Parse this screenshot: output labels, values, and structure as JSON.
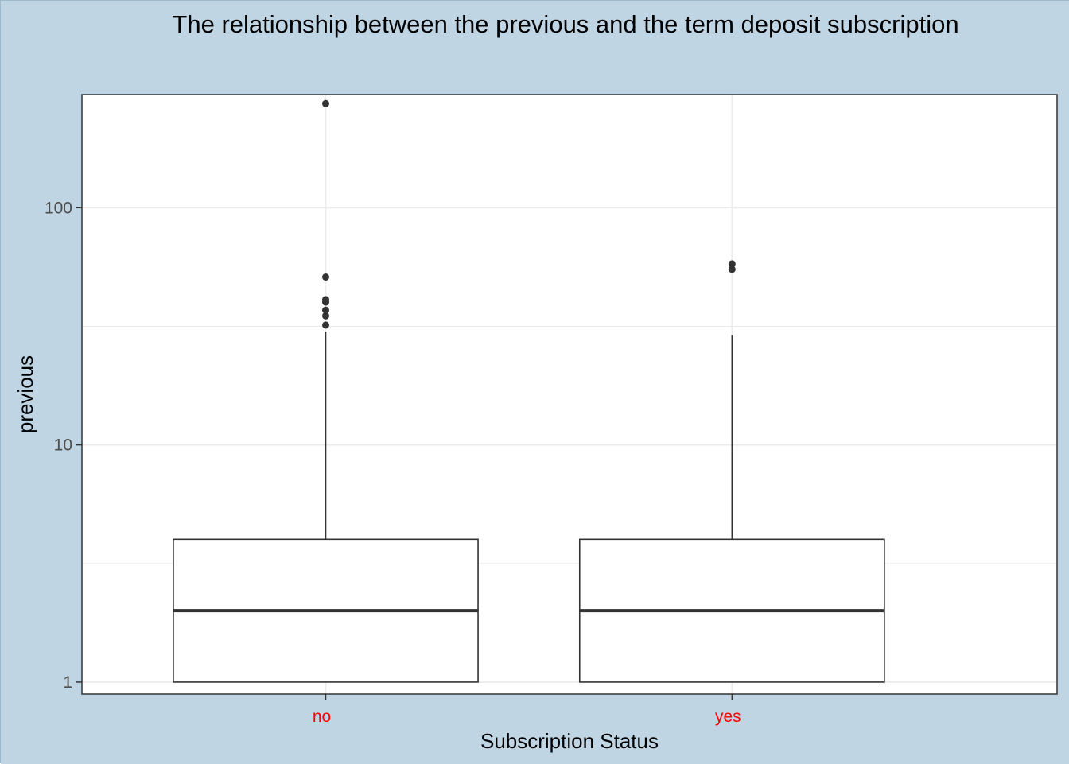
{
  "chart_data": {
    "type": "boxplot",
    "title": "The relationship between the previous and the term deposit subscription",
    "xlabel": "Subscription Status",
    "ylabel": "previous",
    "y_scale": "log10",
    "ylim": [
      0.89,
      300
    ],
    "y_ticks": [
      "1",
      "10",
      "100"
    ],
    "y_tick_values": [
      1,
      10,
      100
    ],
    "y_minor_gridlines": [
      3.16,
      31.6
    ],
    "grid": true,
    "categories": [
      "no",
      "yes"
    ],
    "boxes": [
      {
        "category": "no",
        "whisker_low": 1,
        "q1": 1,
        "median": 2,
        "q3": 4,
        "whisker_high": 30,
        "outliers": [
          32,
          35,
          37,
          40,
          41,
          51,
          275
        ]
      },
      {
        "category": "yes",
        "whisker_low": 1,
        "q1": 1,
        "median": 2,
        "q3": 4,
        "whisker_high": 29,
        "outliers": [
          55,
          58
        ]
      }
    ],
    "colors": {
      "background": "#bfd5e4",
      "panel": "#ffffff",
      "grid": "#ebebeb",
      "box_line": "#333333",
      "outlier": "#333333",
      "x_tick_label": "#ff0000",
      "y_tick_label": "#4d4d4d"
    }
  }
}
